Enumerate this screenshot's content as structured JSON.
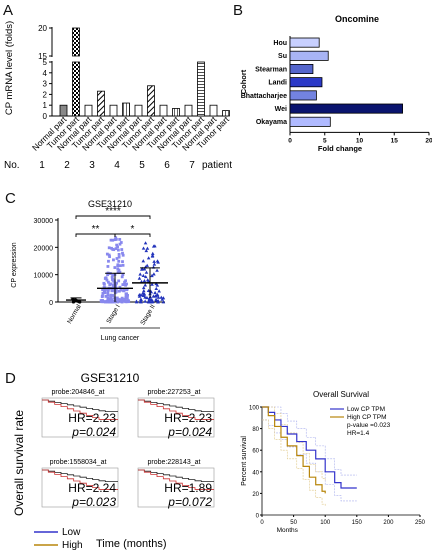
{
  "panels": {
    "a": "A",
    "b": "B",
    "c": "C",
    "d": "D"
  },
  "chart_data": [
    {
      "panel": "A",
      "type": "bar",
      "ylabel": "CP mRNA level (folds)",
      "categories": [
        "Normal part",
        "Tumor part",
        "Normal part",
        "Tumor part",
        "Normal part",
        "Tumor part",
        "Normal part",
        "Tumor part",
        "Normal part",
        "Tumor part",
        "Normal part",
        "Tumor part",
        "Normal part",
        "Tumor part"
      ],
      "values": [
        1,
        20,
        1,
        2.3,
        1,
        1.2,
        1,
        2.8,
        1,
        0.7,
        1,
        15,
        1,
        0.5
      ],
      "ylim": [
        0,
        22
      ],
      "yaxis_break": [
        5,
        15
      ],
      "yticks": [
        0,
        1,
        2,
        3,
        4,
        5,
        15,
        20
      ],
      "row_label": "No.",
      "patients": [
        "1",
        "2",
        "3",
        "4",
        "5",
        "6",
        "7"
      ],
      "patient_label": "patient"
    },
    {
      "panel": "B",
      "type": "bar",
      "orientation": "horizontal",
      "title": "Oncomine",
      "xlabel": "Fold change",
      "ylabel": "Cohort",
      "categories": [
        "Hou",
        "Su",
        "Stearman",
        "Landi",
        "Bhattacharjee",
        "Wei",
        "Okayama"
      ],
      "values": [
        4.2,
        5.5,
        3.3,
        4.6,
        3.8,
        16.2,
        5.8
      ],
      "xlim": [
        0,
        20
      ],
      "xticks": [
        0,
        5,
        10,
        15,
        20
      ]
    },
    {
      "panel": "C",
      "type": "scatter",
      "title": "GSE31210",
      "ylabel": "CP expression",
      "categories": [
        "Normal",
        "Stage I",
        "Stage II"
      ],
      "group_label": "Lung cancer",
      "ylim": [
        0,
        30000
      ],
      "yticks": [
        0,
        10000,
        20000,
        30000
      ],
      "means": [
        700,
        5000,
        7000
      ],
      "sd": [
        800,
        5500,
        5500
      ],
      "significance": [
        {
          "from": "Normal",
          "to": "Stage II",
          "label": "****"
        },
        {
          "from": "Normal",
          "to": "Stage I",
          "label": "**"
        },
        {
          "from": "Stage I",
          "to": "Stage II",
          "label": "*"
        }
      ]
    },
    {
      "panel": "D",
      "type": "line",
      "title": "GSE31210",
      "ylabel": "Overall survival rate",
      "xlabel": "Time (months)",
      "legend": [
        "Low",
        "High"
      ],
      "subplots": [
        {
          "probe": "probe:204846_at",
          "hr": "HR=2.23",
          "p": "p=0.024"
        },
        {
          "probe": "probe:227253_at",
          "hr": "HR=2.23",
          "p": "p=0.024"
        },
        {
          "probe": "probe:1558034_at",
          "hr": "HR=2.24",
          "p": "p=0.023"
        },
        {
          "probe": "probe:228143_at",
          "hr": "HR=1.89",
          "p": "p=0.072"
        }
      ],
      "right_panel": {
        "title": "Overall Survival",
        "ylabel": "Percent survival",
        "xlabel": "Months",
        "legend": [
          "Low CP TPM",
          "High CP TPM"
        ],
        "pvalue": "p-value =0.023",
        "hr": "HR=1.4",
        "yticks": [
          0,
          20,
          40,
          60,
          80,
          100
        ],
        "xticks": [
          0,
          50,
          100,
          150,
          200,
          250
        ],
        "ylim": [
          0,
          100
        ],
        "xlim": [
          0,
          250
        ]
      },
      "colors": {
        "low": "#3333cc",
        "high": "#b8860b",
        "km_low": "#222222",
        "km_high": "#cc3333"
      }
    }
  ]
}
